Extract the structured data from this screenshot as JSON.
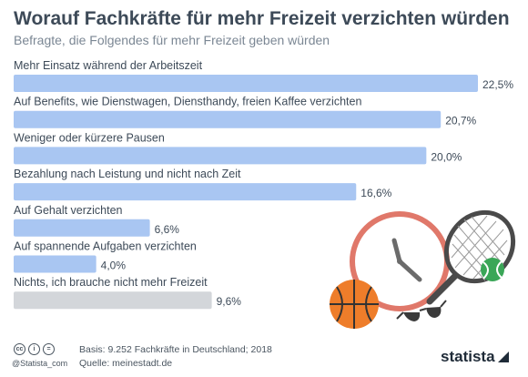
{
  "header": {
    "title": "Worauf Fachkräfte für mehr Freizeit verzichten würden",
    "subtitle": "Befragte, die Folgendes für mehr Freizeit geben würden"
  },
  "chart_data": {
    "type": "bar",
    "orientation": "horizontal",
    "categories": [
      "Mehr Einsatz während der Arbeitszeit",
      "Auf Benefits, wie Dienstwagen, Diensthandy, freien Kaffee verzichten",
      "Weniger oder kürzere Pausen",
      "Bezahlung nach Leistung und nicht nach Zeit",
      "Auf Gehalt verzichten",
      "Auf spannende Aufgaben verzichten",
      "Nichts, ich brauche nicht mehr Freizeit"
    ],
    "values": [
      22.5,
      20.7,
      20.0,
      16.6,
      6.6,
      4.0,
      9.6
    ],
    "value_labels": [
      "22,5%",
      "20,7%",
      "20,0%",
      "16,6%",
      "6,6%",
      "4,0%",
      "9,6%"
    ],
    "bar_colors": [
      "#a9c6f2",
      "#a9c6f2",
      "#a9c6f2",
      "#a9c6f2",
      "#a9c6f2",
      "#a9c6f2",
      "#d3d6da"
    ],
    "xlim": [
      0,
      22.5
    ],
    "grid": false,
    "legend": "none"
  },
  "footer": {
    "license_icons": [
      "cc-icon",
      "by-icon",
      "nd-icon"
    ],
    "license_glyphs": [
      "cc",
      "i",
      "="
    ],
    "handle": "@Statista_com",
    "basis": "Basis: 9.252 Fachkräfte in Deutschland; 2018",
    "source": "Quelle: meinestadt.de",
    "brand": "statista"
  },
  "illustration": {
    "icons": [
      "clock-icon",
      "basketball-icon",
      "tennis-racket-icon",
      "tennis-ball-icon",
      "sunglasses-icon"
    ],
    "colors": {
      "clock": "#e0786a",
      "basketball": "#ee7d2a",
      "racket": "#4a4a4a",
      "tennis_ball": "#3aa657",
      "sunglasses": "#3a3a3a"
    }
  }
}
